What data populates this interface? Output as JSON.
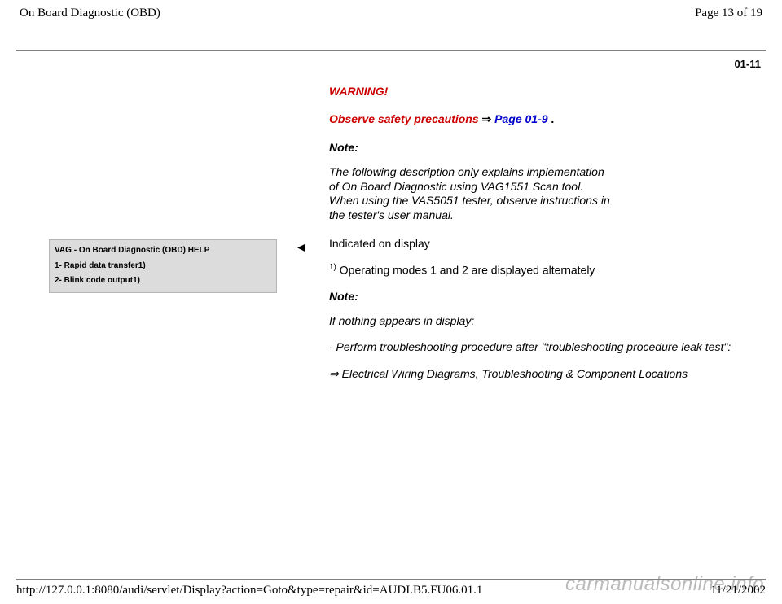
{
  "header": {
    "title": "On Board Diagnostic (OBD)",
    "page_indicator": "Page 13 of 19"
  },
  "page_number": "01-11",
  "display_box": {
    "line1": "VAG - On Board Diagnostic (OBD) HELP",
    "line2": "1- Rapid data transfer1)",
    "line3": "2- Blink code output1)"
  },
  "marker": "◄",
  "content": {
    "warning_title": "WARNING!",
    "precaution_text": "Observe safety precautions ",
    "precaution_arrow": "⇒",
    "precaution_link": " Page 01-9 ",
    "precaution_dot": ".",
    "note_title": "Note:",
    "note_body": "The following description only explains implementation of On Board Diagnostic using VAG1551 Scan tool. When using the VAS5051 tester, observe instructions in the tester's user manual.",
    "indicated": "Indicated on display",
    "footnote_sup": "1)",
    "footnote_text": " Operating modes 1 and 2 are displayed alternately",
    "note2_title": "Note:",
    "note2_body": "If nothing appears in display:",
    "bullet": "- Perform troubleshooting procedure after \"troubleshooting procedure leak test\":",
    "ref_arrow": "⇒",
    "ref_text": " Electrical Wiring Diagrams, Troubleshooting & Component Locations"
  },
  "footer": {
    "url": "http://127.0.0.1:8080/audi/servlet/Display?action=Goto&type=repair&id=AUDI.B5.FU06.01.1",
    "date": "11/21/2002"
  },
  "watermark": "carmanualsonline.info"
}
